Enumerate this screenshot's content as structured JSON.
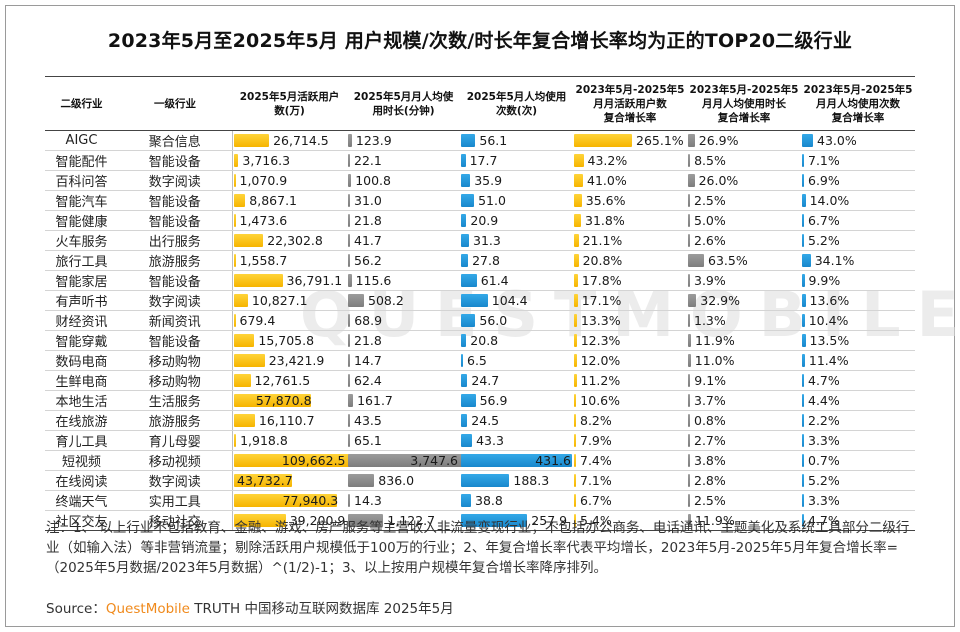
{
  "title": "2023年5月至2025年5月 用户规模/次数/时长年复合增长率均为正的TOP20二级行业",
  "watermark": "QUESTMOBILE",
  "chart_data": {
    "type": "table",
    "columns": [
      "二级行业",
      "一级行业",
      "2025年5月活跃用户数(万)",
      "2025年5月月人均使用时长(分钟)",
      "2025年5月人均使用次数(次)",
      "2023年5月-2025年5月月活跃用户数复合增长率",
      "2023年5月-2025年5月月人均使用时长复合增长率",
      "2023年5月-2025年5月月人均使用次数复合增长率"
    ],
    "header_lines": [
      [
        "二级行业"
      ],
      [
        "一级行业"
      ],
      [
        "2025年5月活跃用户",
        "数(万)"
      ],
      [
        "2025年5月月人均使",
        "用时长(分钟)"
      ],
      [
        "2025年5月人均使用",
        "次数(次)"
      ],
      [
        "2023年5月-2025年5",
        "月月活跃用户数",
        "复合增长率"
      ],
      [
        "2023年5月-2025年5",
        "月月人均使用时长",
        "复合增长率"
      ],
      [
        "2023年5月-2025年5",
        "月月人均使用次数",
        "复合增长率"
      ]
    ],
    "rows": [
      {
        "sub": "AIGC",
        "cat": "聚合信息",
        "users": 26714.5,
        "users_label": "26,714.5",
        "time": 123.9,
        "time_label": "123.9",
        "count": 56.1,
        "count_label": "56.1",
        "g_users": 265.1,
        "g_users_label": "265.1%",
        "g_time": 26.9,
        "g_time_label": "26.9%",
        "g_count": 43.0,
        "g_count_label": "43.0%"
      },
      {
        "sub": "智能配件",
        "cat": "智能设备",
        "users": 3716.3,
        "users_label": "3,716.3",
        "time": 22.1,
        "time_label": "22.1",
        "count": 17.7,
        "count_label": "17.7",
        "g_users": 43.2,
        "g_users_label": "43.2%",
        "g_time": 8.5,
        "g_time_label": "8.5%",
        "g_count": 7.1,
        "g_count_label": "7.1%"
      },
      {
        "sub": "百科问答",
        "cat": "数字阅读",
        "users": 1070.9,
        "users_label": "1,070.9",
        "time": 100.8,
        "time_label": "100.8",
        "count": 35.9,
        "count_label": "35.9",
        "g_users": 41.0,
        "g_users_label": "41.0%",
        "g_time": 26.0,
        "g_time_label": "26.0%",
        "g_count": 6.9,
        "g_count_label": "6.9%"
      },
      {
        "sub": "智能汽车",
        "cat": "智能设备",
        "users": 8867.1,
        "users_label": "8,867.1",
        "time": 31.0,
        "time_label": "31.0",
        "count": 51.0,
        "count_label": "51.0",
        "g_users": 35.6,
        "g_users_label": "35.6%",
        "g_time": 2.5,
        "g_time_label": "2.5%",
        "g_count": 14.0,
        "g_count_label": "14.0%"
      },
      {
        "sub": "智能健康",
        "cat": "智能设备",
        "users": 1473.6,
        "users_label": "1,473.6",
        "time": 21.8,
        "time_label": "21.8",
        "count": 20.9,
        "count_label": "20.9",
        "g_users": 31.8,
        "g_users_label": "31.8%",
        "g_time": 5.0,
        "g_time_label": "5.0%",
        "g_count": 6.7,
        "g_count_label": "6.7%"
      },
      {
        "sub": "火车服务",
        "cat": "出行服务",
        "users": 22302.8,
        "users_label": "22,302.8",
        "time": 41.7,
        "time_label": "41.7",
        "count": 31.3,
        "count_label": "31.3",
        "g_users": 21.1,
        "g_users_label": "21.1%",
        "g_time": 2.6,
        "g_time_label": "2.6%",
        "g_count": 5.2,
        "g_count_label": "5.2%"
      },
      {
        "sub": "旅行工具",
        "cat": "旅游服务",
        "users": 1558.7,
        "users_label": "1,558.7",
        "time": 56.2,
        "time_label": "56.2",
        "count": 27.8,
        "count_label": "27.8",
        "g_users": 20.8,
        "g_users_label": "20.8%",
        "g_time": 63.5,
        "g_time_label": "63.5%",
        "g_count": 34.1,
        "g_count_label": "34.1%"
      },
      {
        "sub": "智能家居",
        "cat": "智能设备",
        "users": 36791.1,
        "users_label": "36,791.1",
        "time": 115.6,
        "time_label": "115.6",
        "count": 61.4,
        "count_label": "61.4",
        "g_users": 17.8,
        "g_users_label": "17.8%",
        "g_time": 3.9,
        "g_time_label": "3.9%",
        "g_count": 9.9,
        "g_count_label": "9.9%"
      },
      {
        "sub": "有声听书",
        "cat": "数字阅读",
        "users": 10827.1,
        "users_label": "10,827.1",
        "time": 508.2,
        "time_label": "508.2",
        "count": 104.4,
        "count_label": "104.4",
        "g_users": 17.1,
        "g_users_label": "17.1%",
        "g_time": 32.9,
        "g_time_label": "32.9%",
        "g_count": 13.6,
        "g_count_label": "13.6%"
      },
      {
        "sub": "财经资讯",
        "cat": "新闻资讯",
        "users": 679.4,
        "users_label": "679.4",
        "time": 68.9,
        "time_label": "68.9",
        "count": 56.0,
        "count_label": "56.0",
        "g_users": 13.3,
        "g_users_label": "13.3%",
        "g_time": 1.3,
        "g_time_label": "1.3%",
        "g_count": 10.4,
        "g_count_label": "10.4%"
      },
      {
        "sub": "智能穿戴",
        "cat": "智能设备",
        "users": 15705.8,
        "users_label": "15,705.8",
        "time": 21.8,
        "time_label": "21.8",
        "count": 20.8,
        "count_label": "20.8",
        "g_users": 12.3,
        "g_users_label": "12.3%",
        "g_time": 11.9,
        "g_time_label": "11.9%",
        "g_count": 13.5,
        "g_count_label": "13.5%"
      },
      {
        "sub": "数码电商",
        "cat": "移动购物",
        "users": 23421.9,
        "users_label": "23,421.9",
        "time": 14.7,
        "time_label": "14.7",
        "count": 6.5,
        "count_label": "6.5",
        "g_users": 12.0,
        "g_users_label": "12.0%",
        "g_time": 11.0,
        "g_time_label": "11.0%",
        "g_count": 11.4,
        "g_count_label": "11.4%"
      },
      {
        "sub": "生鲜电商",
        "cat": "移动购物",
        "users": 12761.5,
        "users_label": "12,761.5",
        "time": 62.4,
        "time_label": "62.4",
        "count": 24.7,
        "count_label": "24.7",
        "g_users": 11.2,
        "g_users_label": "11.2%",
        "g_time": 9.1,
        "g_time_label": "9.1%",
        "g_count": 4.7,
        "g_count_label": "4.7%"
      },
      {
        "sub": "本地生活",
        "cat": "生活服务",
        "users": 57870.8,
        "users_label": "57,870.8",
        "time": 161.7,
        "time_label": "161.7",
        "count": 56.9,
        "count_label": "56.9",
        "g_users": 10.6,
        "g_users_label": "10.6%",
        "g_time": 3.7,
        "g_time_label": "3.7%",
        "g_count": 4.4,
        "g_count_label": "4.4%"
      },
      {
        "sub": "在线旅游",
        "cat": "旅游服务",
        "users": 16110.7,
        "users_label": "16,110.7",
        "time": 43.5,
        "time_label": "43.5",
        "count": 24.5,
        "count_label": "24.5",
        "g_users": 8.2,
        "g_users_label": "8.2%",
        "g_time": 0.8,
        "g_time_label": "0.8%",
        "g_count": 2.2,
        "g_count_label": "2.2%"
      },
      {
        "sub": "育儿工具",
        "cat": "育儿母婴",
        "users": 1918.8,
        "users_label": "1,918.8",
        "time": 65.1,
        "time_label": "65.1",
        "count": 43.3,
        "count_label": "43.3",
        "g_users": 7.9,
        "g_users_label": "7.9%",
        "g_time": 2.7,
        "g_time_label": "2.7%",
        "g_count": 3.3,
        "g_count_label": "3.3%"
      },
      {
        "sub": "短视频",
        "cat": "移动视频",
        "users": 109662.5,
        "users_label": "109,662.5",
        "time": 3747.6,
        "time_label": "3,747.6",
        "count": 431.6,
        "count_label": "431.6",
        "g_users": 7.4,
        "g_users_label": "7.4%",
        "g_time": 3.8,
        "g_time_label": "3.8%",
        "g_count": 0.7,
        "g_count_label": "0.7%"
      },
      {
        "sub": "在线阅读",
        "cat": "数字阅读",
        "users": 43732.7,
        "users_label": "43,732.7",
        "time": 836.0,
        "time_label": "836.0",
        "count": 188.3,
        "count_label": "188.3",
        "g_users": 7.1,
        "g_users_label": "7.1%",
        "g_time": 2.8,
        "g_time_label": "2.8%",
        "g_count": 5.2,
        "g_count_label": "5.2%"
      },
      {
        "sub": "终端天气",
        "cat": "实用工具",
        "users": 77940.3,
        "users_label": "77,940.3",
        "time": 14.3,
        "time_label": "14.3",
        "count": 38.8,
        "count_label": "38.8",
        "g_users": 6.7,
        "g_users_label": "6.7%",
        "g_time": 2.5,
        "g_time_label": "2.5%",
        "g_count": 3.3,
        "g_count_label": "3.3%"
      },
      {
        "sub": "社区交友",
        "cat": "移动社交",
        "users": 39200.9,
        "users_label": "39,200.9",
        "time": 1122.7,
        "time_label": "1,122.7",
        "count": 257.9,
        "count_label": "257.9",
        "g_users": 5.4,
        "g_users_label": "5.4%",
        "g_time": 11.9,
        "g_time_label": "11.9%",
        "g_count": 4.7,
        "g_count_label": "4.7%"
      }
    ],
    "bar_colors": {
      "users": "#f9c00c",
      "time": "#8a8a8a",
      "count": "#1f97dc",
      "g_users": "#f9c00c",
      "g_time": "#8a8a8a",
      "g_count": "#1f97dc"
    },
    "column_max": {
      "users": 109662.5,
      "time": 3747.6,
      "count": 431.6,
      "g_users": 265.1,
      "g_time": 63.5,
      "g_count": 43.0
    }
  },
  "note": "注：1、 以上行业不包括教育、金融、游戏、房产服务等主营收入非流量变现行业；不包括办公商务、电话通讯、主题美化及系统工具部分二级行业（如输入法）等非营销流量；剔除活跃用户规模低于100万的行业；2、年复合增长率代表平均增长，2023年5月-2025年5月年复合增长率=（2025年5月数据/2023年5月数据）^(1/2)-1；3、以上按用户规模年复合增长率降序排列。",
  "source_prefix": "Source：",
  "source_brand": "QuestMobile",
  "source_suffix": " TRUTH 中国移动互联网数据库 2025年5月"
}
